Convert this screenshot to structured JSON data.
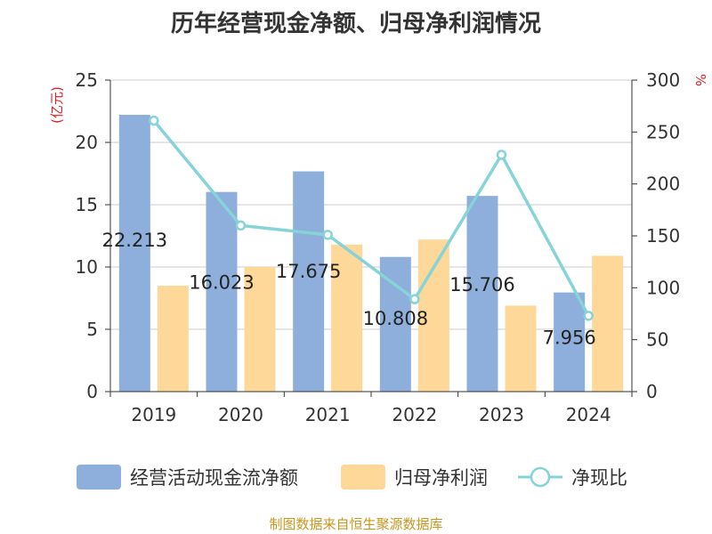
{
  "colors": {
    "bar_cashflow": "#8eaedb",
    "bar_netprofit": "#fdd898",
    "line_ratio": "#86d3d8",
    "axis": "#333333",
    "grid": "#cccccc",
    "unit_label": "#e02020",
    "source": "#c8961e"
  },
  "chart_data": {
    "type": "bar",
    "title": "历年经营现金净额、归母净利润情况",
    "categories": [
      "2019",
      "2020",
      "2021",
      "2022",
      "2023",
      "2024"
    ],
    "series": [
      {
        "name": "经营活动现金流净额",
        "kind": "bar",
        "axis": "left",
        "values": [
          22.213,
          16.023,
          17.675,
          10.808,
          15.706,
          7.956
        ],
        "labels": [
          "22.213",
          "16.023",
          "17.675",
          "10.808",
          "15.706",
          "7.956"
        ]
      },
      {
        "name": "归母净利润",
        "kind": "bar",
        "axis": "left",
        "values": [
          8.5,
          10.0,
          11.8,
          12.2,
          6.9,
          10.9
        ]
      },
      {
        "name": "净现比",
        "kind": "line",
        "axis": "right",
        "values": [
          261,
          160,
          151,
          89,
          228,
          73
        ]
      }
    ],
    "left_axis": {
      "unit": "(亿元)",
      "range": [
        0,
        25
      ],
      "ticks": [
        0,
        5,
        10,
        15,
        20,
        25
      ]
    },
    "right_axis": {
      "unit": "%",
      "range": [
        0,
        300
      ],
      "ticks": [
        0,
        50,
        100,
        150,
        200,
        250,
        300
      ]
    },
    "legend": [
      "经营活动现金流净额",
      "归母净利润",
      "净现比"
    ],
    "grid": true,
    "legend_position": "bottom"
  },
  "source_text": "制图数据来自恒生聚源数据库"
}
